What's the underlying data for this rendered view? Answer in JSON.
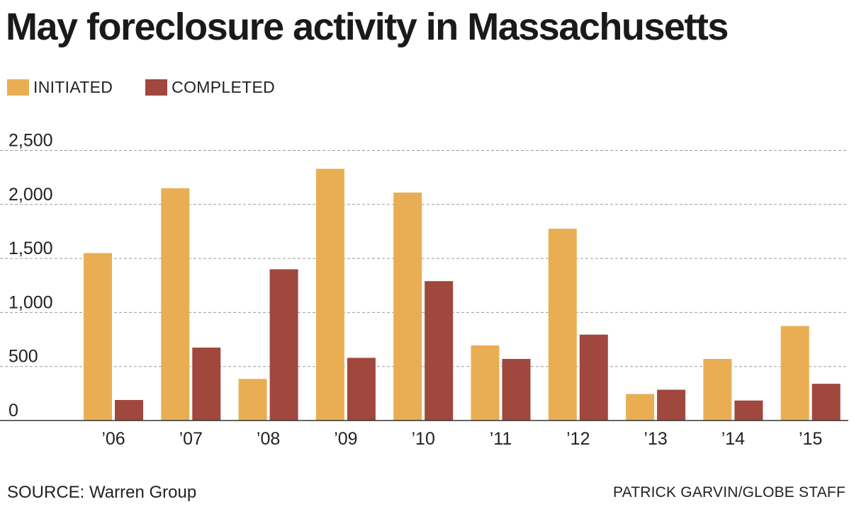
{
  "chart_data": {
    "type": "bar",
    "title": "May foreclosure activity in Massachusetts",
    "categories": [
      "’06",
      "’07",
      "’08",
      "’09",
      "’10",
      "’11",
      "’12",
      "’13",
      "’14",
      "’15"
    ],
    "series": [
      {
        "name": "INITIATED",
        "color": "#E9AE54",
        "values": [
          1550,
          2150,
          385,
          2330,
          2110,
          695,
          1775,
          245,
          570,
          875
        ]
      },
      {
        "name": "COMPLETED",
        "color": "#A0473E",
        "values": [
          190,
          675,
          1400,
          580,
          1290,
          570,
          795,
          285,
          185,
          340
        ]
      }
    ],
    "y_ticks": [
      "0",
      "500",
      "1,000",
      "1,500",
      "2,000",
      "2,500"
    ],
    "ylim": [
      0,
      2500
    ],
    "xlabel": "",
    "ylabel": "",
    "grid": true,
    "legend_position": "top-left"
  },
  "footer": {
    "source": "SOURCE: Warren Group",
    "credit": "PATRICK GARVIN/GLOBE STAFF"
  }
}
